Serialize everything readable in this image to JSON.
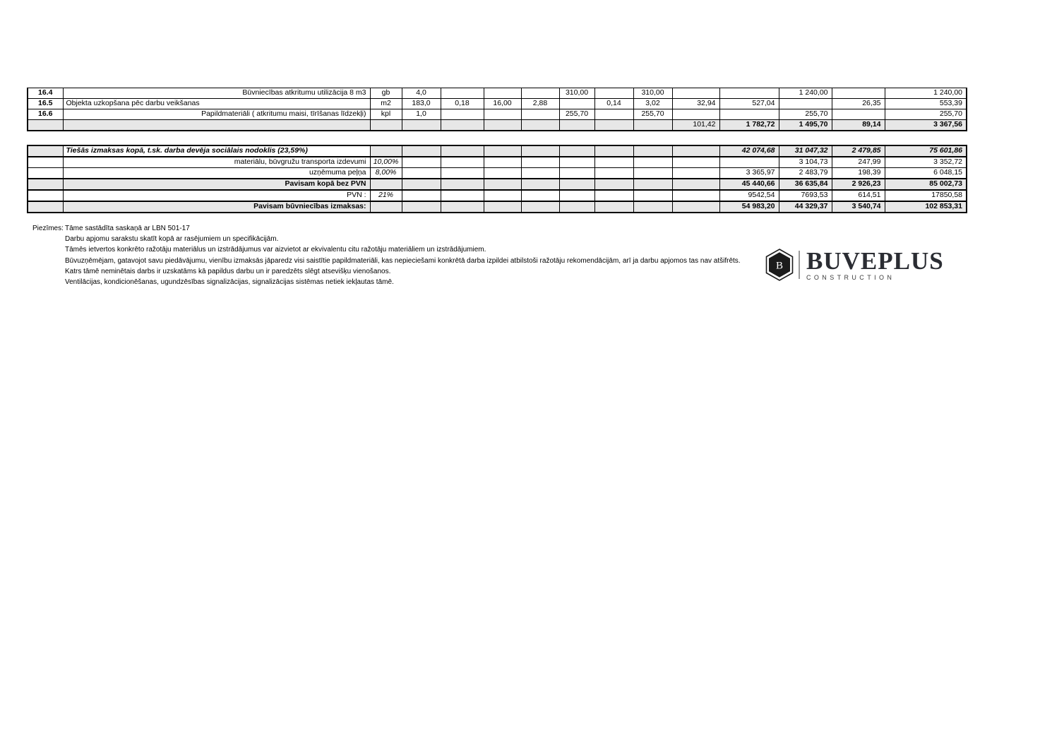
{
  "colors": {
    "row_shade": "#e7e7e7",
    "table_border": "#000000",
    "brand_text": "#2b2d33",
    "brand_subtext": "#3c3c3c"
  },
  "estimate_table": {
    "rows": [
      {
        "type": "item",
        "desc_align": "right",
        "cells": [
          "16.4",
          "Būvniecības atkritumu utilizācija 8 m3",
          "gb",
          "4,0",
          "",
          "",
          "",
          "310,00",
          "",
          "310,00",
          "",
          "",
          "1 240,00",
          "",
          "1 240,00"
        ]
      },
      {
        "type": "item",
        "desc_align": "left",
        "cells": [
          "16.5",
          "Objekta uzkopšana pēc darbu veikšanas",
          "m2",
          "183,0",
          "0,18",
          "16,00",
          "2,88",
          "",
          "0,14",
          "3,02",
          "32,94",
          "527,04",
          "",
          "26,35",
          "553,39"
        ]
      },
      {
        "type": "item",
        "desc_align": "right",
        "cells": [
          "16.6",
          "Papildmateriāli ( atkritumu maisi, tīrīšanas līdzekļi)",
          "kpl",
          "1,0",
          "",
          "",
          "",
          "255,70",
          "",
          "255,70",
          "",
          "",
          "255,70",
          "",
          "255,70"
        ]
      },
      {
        "type": "subtotal",
        "desc_align": "left",
        "cells": [
          "",
          "",
          "",
          "",
          "",
          "",
          "",
          "",
          "",
          "",
          "101,42",
          "1 782,72",
          "1 495,70",
          "89,14",
          "3 367,56"
        ]
      }
    ]
  },
  "summary_table": {
    "rows": [
      {
        "type": "direct",
        "desc_align": "left",
        "cells": [
          "",
          "Tiešās izmaksas kopā, t.sk. darba devēja sociālais nodoklis (23,59%)",
          "",
          "",
          "",
          "",
          "",
          "",
          "",
          "",
          "",
          "42 074,68",
          "31 047,32",
          "2 479,85",
          "75 601,86"
        ]
      },
      {
        "type": "pct",
        "desc_align": "right",
        "cells": [
          "",
          "materiālu,  būvgružu transporta izdevumi",
          "10,00%",
          "",
          "",
          "",
          "",
          "",
          "",
          "",
          "",
          "",
          "3 104,73",
          "247,99",
          "3 352,72"
        ]
      },
      {
        "type": "pct",
        "desc_align": "right",
        "cells": [
          "",
          "uzņēmuma peļņa",
          "8,00%",
          "",
          "",
          "",
          "",
          "",
          "",
          "",
          "",
          "3 365,97",
          "2 483,79",
          "198,39",
          "6 048,15"
        ]
      },
      {
        "type": "grand",
        "desc_align": "right",
        "cells": [
          "",
          "Pavisam kopā bez PVN",
          "",
          "",
          "",
          "",
          "",
          "",
          "",
          "",
          "",
          "45 440,66",
          "36 635,84",
          "2 926,23",
          "85 002,73"
        ]
      },
      {
        "type": "pct",
        "desc_align": "right",
        "cells": [
          "",
          "PVN :",
          "21%",
          "",
          "",
          "",
          "",
          "",
          "",
          "",
          "",
          "9542,54",
          "7693,53",
          "614,51",
          "17850,58"
        ]
      },
      {
        "type": "grand",
        "desc_align": "right",
        "cells": [
          "",
          "Pavisam būvniecības izmaksas:",
          "",
          "",
          "",
          "",
          "",
          "",
          "",
          "",
          "",
          "54 983,20",
          "44 329,37",
          "3 540,74",
          "102 853,31"
        ]
      }
    ]
  },
  "notes": {
    "label": "Piezīmes:",
    "lines": [
      "Tāme sastādīta  saskaņā ar LBN 501-17",
      "Darbu apjomu sarakstu skatīt kopā ar rasējumiem un specifikācijām.",
      "Tāmēs ietvertos konkrēto ražotāju materiālus un izstrādājumus var aizvietot ar ekvivalentu citu ražotāju materiāliem un izstrādājumiem.",
      "Būvuzņēmējam, gatavojot savu piedāvājumu, vienību izmaksās jāparedz visi saistītie papildmateriāli, kas nepieciešami konkrētā darba izpildei atbilstoši ražotāju rekomendācijām, arī ja darbu apjomos tas nav atšifrēts.",
      "Katrs tāmē neminētais darbs ir uzskatāms kā papildus darbu un ir paredzēts slēgt atsevišķu vienošanos.",
      "Ventilācijas, kondicionēšanas, ugundzēsības signalizācijas, signalizācijas sistēmas netiek iekļautas tāmē."
    ]
  },
  "logo": {
    "monogram": "B",
    "name": "BUVEPLUS",
    "subtitle": "CONSTRUCTION"
  }
}
